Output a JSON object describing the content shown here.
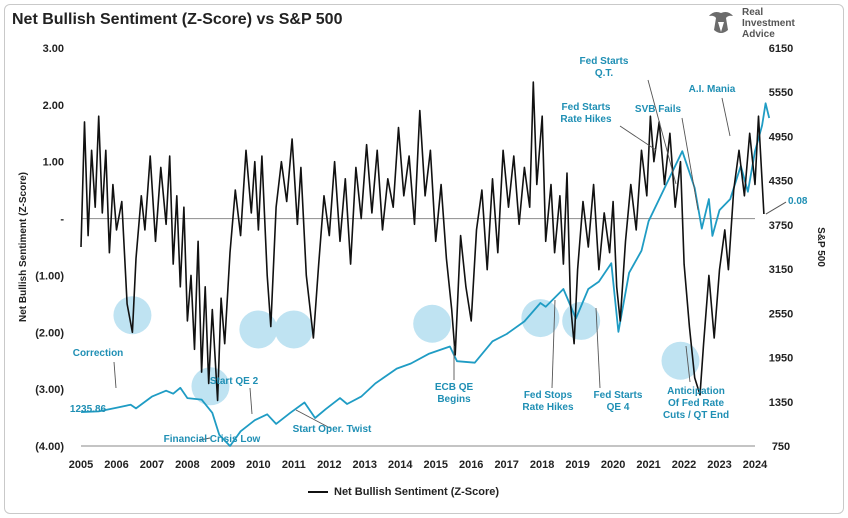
{
  "chart_data": {
    "type": "line",
    "title": "Net Bullish Sentiment (Z-Score) vs S&P 500",
    "ylabel_left": "Net Bullish Sentiment (Z-Score)",
    "ylabel_right": "S&P 500",
    "xlim": [
      2005,
      2024
    ],
    "ylim_left": [
      -4,
      3
    ],
    "ylim_right": [
      750,
      6150
    ],
    "x_ticks": [
      "2005",
      "2006",
      "2007",
      "2008",
      "2009",
      "2010",
      "2011",
      "2012",
      "2013",
      "2014",
      "2015",
      "2016",
      "2017",
      "2018",
      "2019",
      "2020",
      "2021",
      "2022",
      "2023",
      "2024"
    ],
    "y_left_ticks": [
      "3.00",
      "2.00",
      "1.00",
      "-",
      "(1.00)",
      "(2.00)",
      "(3.00)",
      "(4.00)"
    ],
    "y_right_ticks": [
      "6150",
      "5550",
      "4950",
      "4350",
      "3750",
      "3150",
      "2550",
      "1950",
      "1350",
      "750"
    ],
    "zero_line": true,
    "grid": false,
    "legend_position": "bottom-center",
    "series": [
      {
        "name": "Net Bullish Sentiment (Z-Score)",
        "axis": "left",
        "color": "#111111",
        "points": [
          [
            2005.0,
            -0.5
          ],
          [
            2005.1,
            1.7
          ],
          [
            2005.2,
            -0.3
          ],
          [
            2005.3,
            1.2
          ],
          [
            2005.4,
            0.2
          ],
          [
            2005.5,
            1.8
          ],
          [
            2005.6,
            0.1
          ],
          [
            2005.7,
            1.2
          ],
          [
            2005.8,
            -0.6
          ],
          [
            2005.9,
            0.6
          ],
          [
            2006.0,
            -0.2
          ],
          [
            2006.15,
            0.3
          ],
          [
            2006.3,
            -1.5
          ],
          [
            2006.45,
            -2.0
          ],
          [
            2006.55,
            -0.7
          ],
          [
            2006.7,
            0.4
          ],
          [
            2006.8,
            -0.2
          ],
          [
            2006.95,
            1.1
          ],
          [
            2007.1,
            -0.4
          ],
          [
            2007.25,
            0.9
          ],
          [
            2007.4,
            -0.1
          ],
          [
            2007.5,
            1.1
          ],
          [
            2007.6,
            -0.8
          ],
          [
            2007.7,
            0.4
          ],
          [
            2007.8,
            -1.2
          ],
          [
            2007.9,
            0.2
          ],
          [
            2008.0,
            -1.8
          ],
          [
            2008.1,
            -1.0
          ],
          [
            2008.2,
            -2.3
          ],
          [
            2008.3,
            -0.4
          ],
          [
            2008.4,
            -2.7
          ],
          [
            2008.5,
            -1.2
          ],
          [
            2008.6,
            -2.9
          ],
          [
            2008.7,
            -1.6
          ],
          [
            2008.85,
            -3.2
          ],
          [
            2008.95,
            -1.4
          ],
          [
            2009.05,
            -2.2
          ],
          [
            2009.2,
            -0.6
          ],
          [
            2009.35,
            0.5
          ],
          [
            2009.5,
            -0.3
          ],
          [
            2009.65,
            1.2
          ],
          [
            2009.8,
            0.1
          ],
          [
            2009.9,
            1.0
          ],
          [
            2010.0,
            -0.2
          ],
          [
            2010.1,
            1.1
          ],
          [
            2010.25,
            -1.0
          ],
          [
            2010.35,
            -1.9
          ],
          [
            2010.5,
            0.2
          ],
          [
            2010.65,
            1.0
          ],
          [
            2010.8,
            0.3
          ],
          [
            2010.95,
            1.4
          ],
          [
            2011.1,
            -0.1
          ],
          [
            2011.2,
            0.9
          ],
          [
            2011.35,
            -1.0
          ],
          [
            2011.55,
            -2.1
          ],
          [
            2011.7,
            -0.8
          ],
          [
            2011.85,
            0.4
          ],
          [
            2012.0,
            -0.3
          ],
          [
            2012.15,
            1.0
          ],
          [
            2012.3,
            -0.4
          ],
          [
            2012.45,
            0.7
          ],
          [
            2012.6,
            -0.8
          ],
          [
            2012.75,
            0.9
          ],
          [
            2012.9,
            0.0
          ],
          [
            2013.05,
            1.3
          ],
          [
            2013.2,
            0.1
          ],
          [
            2013.35,
            1.2
          ],
          [
            2013.5,
            -0.2
          ],
          [
            2013.65,
            0.7
          ],
          [
            2013.8,
            0.2
          ],
          [
            2013.95,
            1.6
          ],
          [
            2014.1,
            0.4
          ],
          [
            2014.25,
            1.1
          ],
          [
            2014.4,
            -0.1
          ],
          [
            2014.55,
            1.9
          ],
          [
            2014.7,
            0.4
          ],
          [
            2014.85,
            1.2
          ],
          [
            2015.0,
            -0.4
          ],
          [
            2015.15,
            0.6
          ],
          [
            2015.3,
            -0.7
          ],
          [
            2015.45,
            -1.6
          ],
          [
            2015.55,
            -2.4
          ],
          [
            2015.7,
            -0.3
          ],
          [
            2015.85,
            -1.2
          ],
          [
            2016.0,
            -1.8
          ],
          [
            2016.15,
            -0.2
          ],
          [
            2016.3,
            0.5
          ],
          [
            2016.45,
            -0.9
          ],
          [
            2016.6,
            0.7
          ],
          [
            2016.75,
            -0.6
          ],
          [
            2016.9,
            1.2
          ],
          [
            2017.05,
            0.2
          ],
          [
            2017.2,
            1.1
          ],
          [
            2017.35,
            -0.1
          ],
          [
            2017.5,
            0.9
          ],
          [
            2017.65,
            0.2
          ],
          [
            2017.75,
            2.4
          ],
          [
            2017.85,
            0.6
          ],
          [
            2018.0,
            1.8
          ],
          [
            2018.1,
            -0.4
          ],
          [
            2018.25,
            0.6
          ],
          [
            2018.35,
            -0.6
          ],
          [
            2018.5,
            0.4
          ],
          [
            2018.6,
            -0.8
          ],
          [
            2018.7,
            0.8
          ],
          [
            2018.8,
            -1.5
          ],
          [
            2018.9,
            -2.2
          ],
          [
            2019.0,
            -0.9
          ],
          [
            2019.15,
            0.3
          ],
          [
            2019.3,
            -0.5
          ],
          [
            2019.45,
            0.6
          ],
          [
            2019.6,
            -0.9
          ],
          [
            2019.75,
            0.1
          ],
          [
            2019.9,
            -0.6
          ],
          [
            2020.0,
            0.3
          ],
          [
            2020.1,
            -1.2
          ],
          [
            2020.2,
            -1.8
          ],
          [
            2020.35,
            -0.4
          ],
          [
            2020.5,
            0.6
          ],
          [
            2020.65,
            -0.2
          ],
          [
            2020.8,
            1.2
          ],
          [
            2020.95,
            0.4
          ],
          [
            2021.05,
            1.8
          ],
          [
            2021.15,
            1.0
          ],
          [
            2021.3,
            1.7
          ],
          [
            2021.45,
            0.6
          ],
          [
            2021.6,
            1.5
          ],
          [
            2021.75,
            0.2
          ],
          [
            2021.9,
            1.0
          ],
          [
            2022.0,
            -0.8
          ],
          [
            2022.15,
            -1.9
          ],
          [
            2022.3,
            -2.8
          ],
          [
            2022.45,
            -3.1
          ],
          [
            2022.55,
            -2.2
          ],
          [
            2022.7,
            -1.0
          ],
          [
            2022.85,
            -2.1
          ],
          [
            2023.0,
            -0.9
          ],
          [
            2023.15,
            -0.2
          ],
          [
            2023.25,
            -0.9
          ],
          [
            2023.4,
            0.5
          ],
          [
            2023.55,
            1.2
          ],
          [
            2023.7,
            0.4
          ],
          [
            2023.85,
            1.5
          ],
          [
            2024.0,
            0.6
          ],
          [
            2024.1,
            1.8
          ],
          [
            2024.25,
            0.08
          ]
        ]
      },
      {
        "name": "S&P 500",
        "axis": "right",
        "color": "#1f9cc4",
        "points": [
          [
            2005.0,
            1210
          ],
          [
            2005.5,
            1220
          ],
          [
            2006.0,
            1270
          ],
          [
            2006.4,
            1310
          ],
          [
            2006.55,
            1260
          ],
          [
            2007.0,
            1420
          ],
          [
            2007.4,
            1500
          ],
          [
            2007.6,
            1460
          ],
          [
            2007.8,
            1540
          ],
          [
            2008.0,
            1400
          ],
          [
            2008.4,
            1380
          ],
          [
            2008.7,
            1200
          ],
          [
            2008.9,
            900
          ],
          [
            2009.2,
            750
          ],
          [
            2009.5,
            950
          ],
          [
            2009.9,
            1100
          ],
          [
            2010.25,
            1180
          ],
          [
            2010.5,
            1050
          ],
          [
            2010.9,
            1200
          ],
          [
            2011.3,
            1340
          ],
          [
            2011.6,
            1130
          ],
          [
            2011.9,
            1250
          ],
          [
            2012.3,
            1400
          ],
          [
            2012.5,
            1320
          ],
          [
            2012.9,
            1420
          ],
          [
            2013.3,
            1600
          ],
          [
            2013.9,
            1800
          ],
          [
            2014.3,
            1870
          ],
          [
            2014.8,
            2000
          ],
          [
            2015.4,
            2100
          ],
          [
            2015.6,
            1900
          ],
          [
            2016.1,
            1880
          ],
          [
            2016.6,
            2170
          ],
          [
            2017.0,
            2270
          ],
          [
            2017.5,
            2440
          ],
          [
            2017.95,
            2690
          ],
          [
            2018.1,
            2640
          ],
          [
            2018.6,
            2880
          ],
          [
            2018.95,
            2480
          ],
          [
            2019.3,
            2880
          ],
          [
            2019.6,
            2980
          ],
          [
            2019.95,
            3230
          ],
          [
            2020.15,
            2300
          ],
          [
            2020.45,
            3100
          ],
          [
            2020.8,
            3400
          ],
          [
            2021.0,
            3800
          ],
          [
            2021.5,
            4300
          ],
          [
            2021.95,
            4750
          ],
          [
            2022.3,
            4250
          ],
          [
            2022.5,
            3700
          ],
          [
            2022.7,
            4100
          ],
          [
            2022.8,
            3600
          ],
          [
            2023.0,
            3950
          ],
          [
            2023.3,
            4100
          ],
          [
            2023.6,
            4550
          ],
          [
            2023.8,
            4200
          ],
          [
            2024.0,
            4750
          ],
          [
            2024.2,
            5100
          ],
          [
            2024.3,
            5400
          ],
          [
            2024.4,
            5200
          ]
        ]
      }
    ],
    "end_label": {
      "value": 0.08,
      "text": "0.08",
      "color": "#d9262e"
    },
    "annotations": [
      {
        "text": "Correction",
        "color": "#1f8fb4"
      },
      {
        "text": "1235.86",
        "color": "#1f8fb4"
      },
      {
        "text": "Start QE 2",
        "color": "#1f8fb4"
      },
      {
        "text": "Financial Crisis Low",
        "color": "#1f8fb4"
      },
      {
        "text": "Start Oper. Twist",
        "color": "#1f8fb4"
      },
      {
        "text": "ECB QE Begins",
        "color": "#1f8fb4"
      },
      {
        "text": "Fed Stops Rate Hikes",
        "color": "#1f8fb4"
      },
      {
        "text": "Fed Starts QE 4",
        "color": "#1f8fb4"
      },
      {
        "text": "Fed Starts Q.T.",
        "color": "#1f8fb4"
      },
      {
        "text": "Fed Starts Rate Hikes",
        "color": "#1f8fb4"
      },
      {
        "text": "SVB Fails",
        "color": "#1f8fb4"
      },
      {
        "text": "A.I. Mania",
        "color": "#1f8fb4"
      },
      {
        "text": "Anticipation Of Fed Rate Cuts / QT End",
        "color": "#1f8fb4"
      }
    ],
    "highlight_color": "#bfe3f2"
  },
  "logo": {
    "brand": "Real\nInvestment\nAdvice"
  }
}
